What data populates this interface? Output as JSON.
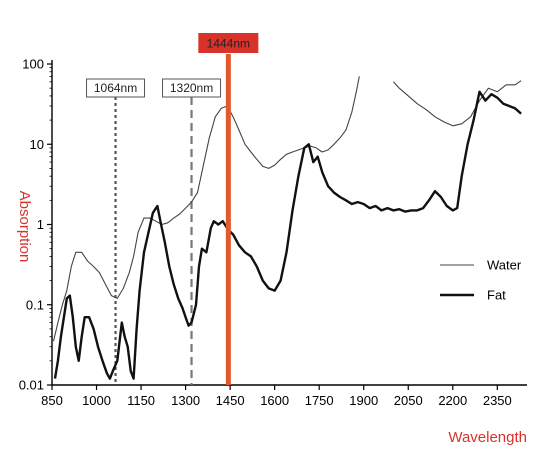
{
  "chart_data": {
    "type": "line",
    "title": "",
    "xlabel": "Wavelength",
    "ylabel": "Absorption",
    "xlim": [
      850,
      2450
    ],
    "ylim": [
      0.01,
      100
    ],
    "yscale": "log",
    "grid": false,
    "legend_placement": "right",
    "x_ticks": [
      "850",
      "1000",
      "1150",
      "1300",
      "1450",
      "1600",
      "1750",
      "1900",
      "2050",
      "2200",
      "2350"
    ],
    "x_tick_values": [
      850,
      1000,
      1150,
      1300,
      1450,
      1600,
      1750,
      1900,
      2050,
      2200,
      2350
    ],
    "y_ticks": [
      "0.01",
      "0.1",
      "1",
      "10",
      "100"
    ],
    "y_tick_values": [
      0.01,
      0.1,
      1,
      10,
      100
    ],
    "colors": {
      "accent": "#d9322b",
      "laser": "#e2592c",
      "water": "#444444",
      "fat": "#111111"
    },
    "markers": [
      {
        "x": 1064,
        "label": "1064nm",
        "style": "dotted"
      },
      {
        "x": 1320,
        "label": "1320nm",
        "style": "dashed"
      },
      {
        "x": 1444,
        "label": "1444nm",
        "style": "highlight"
      }
    ],
    "series": [
      {
        "name": "Water",
        "segments": [
          [
            [
              855,
              0.035
            ],
            [
              870,
              0.06
            ],
            [
              885,
              0.1
            ],
            [
              900,
              0.15
            ],
            [
              915,
              0.3
            ],
            [
              930,
              0.45
            ],
            [
              950,
              0.45
            ],
            [
              970,
              0.35
            ],
            [
              990,
              0.3
            ],
            [
              1010,
              0.25
            ],
            [
              1030,
              0.18
            ],
            [
              1050,
              0.13
            ],
            [
              1070,
              0.12
            ],
            [
              1090,
              0.16
            ],
            [
              1110,
              0.25
            ],
            [
              1125,
              0.4
            ],
            [
              1140,
              0.8
            ],
            [
              1160,
              1.2
            ],
            [
              1180,
              1.2
            ],
            [
              1200,
              1.1
            ],
            [
              1220,
              1.0
            ],
            [
              1240,
              1.05
            ],
            [
              1260,
              1.2
            ],
            [
              1280,
              1.35
            ],
            [
              1300,
              1.6
            ],
            [
              1320,
              1.9
            ],
            [
              1340,
              2.5
            ],
            [
              1360,
              5.5
            ],
            [
              1380,
              12
            ],
            [
              1400,
              22
            ],
            [
              1420,
              28
            ],
            [
              1440,
              30
            ],
            [
              1460,
              22
            ],
            [
              1480,
              15
            ],
            [
              1500,
              10
            ],
            [
              1520,
              8
            ],
            [
              1540,
              6.5
            ],
            [
              1560,
              5.3
            ],
            [
              1580,
              5.0
            ],
            [
              1600,
              5.5
            ],
            [
              1620,
              6.5
            ],
            [
              1640,
              7.5
            ],
            [
              1660,
              8
            ],
            [
              1680,
              8.5
            ],
            [
              1700,
              9
            ],
            [
              1720,
              9.5
            ],
            [
              1740,
              9
            ],
            [
              1760,
              8
            ],
            [
              1780,
              8.5
            ],
            [
              1800,
              10
            ],
            [
              1820,
              12
            ],
            [
              1840,
              15
            ],
            [
              1860,
              25
            ],
            [
              1875,
              45
            ],
            [
              1885,
              70
            ]
          ],
          [
            [
              2000,
              60
            ],
            [
              2020,
              50
            ],
            [
              2050,
              40
            ],
            [
              2080,
              32
            ],
            [
              2110,
              27
            ],
            [
              2140,
              22
            ],
            [
              2170,
              19
            ],
            [
              2200,
              17
            ],
            [
              2230,
              18
            ],
            [
              2260,
              22
            ],
            [
              2290,
              35
            ],
            [
              2320,
              50
            ],
            [
              2350,
              45
            ],
            [
              2380,
              55
            ],
            [
              2410,
              55
            ],
            [
              2430,
              62
            ]
          ]
        ]
      },
      {
        "name": "Fat",
        "segments": [
          [
            [
              860,
              0.012
            ],
            [
              870,
              0.02
            ],
            [
              880,
              0.04
            ],
            [
              890,
              0.07
            ],
            [
              900,
              0.12
            ],
            [
              910,
              0.13
            ],
            [
              920,
              0.07
            ],
            [
              930,
              0.03
            ],
            [
              940,
              0.02
            ],
            [
              950,
              0.04
            ],
            [
              960,
              0.07
            ],
            [
              975,
              0.07
            ],
            [
              990,
              0.05
            ],
            [
              1005,
              0.03
            ],
            [
              1020,
              0.02
            ],
            [
              1035,
              0.014
            ],
            [
              1045,
              0.012
            ],
            [
              1055,
              0.015
            ],
            [
              1070,
              0.02
            ],
            [
              1085,
              0.06
            ],
            [
              1095,
              0.04
            ],
            [
              1105,
              0.03
            ],
            [
              1115,
              0.015
            ],
            [
              1125,
              0.012
            ],
            [
              1135,
              0.05
            ],
            [
              1145,
              0.15
            ],
            [
              1160,
              0.45
            ],
            [
              1175,
              0.8
            ],
            [
              1190,
              1.4
            ],
            [
              1205,
              1.7
            ],
            [
              1215,
              1.1
            ],
            [
              1230,
              0.6
            ],
            [
              1245,
              0.3
            ],
            [
              1260,
              0.18
            ],
            [
              1275,
              0.12
            ],
            [
              1290,
              0.09
            ],
            [
              1300,
              0.07
            ],
            [
              1310,
              0.055
            ],
            [
              1320,
              0.06
            ],
            [
              1335,
              0.1
            ],
            [
              1345,
              0.3
            ],
            [
              1355,
              0.5
            ],
            [
              1370,
              0.45
            ],
            [
              1385,
              0.9
            ],
            [
              1395,
              1.1
            ],
            [
              1410,
              1.0
            ],
            [
              1425,
              1.1
            ],
            [
              1445,
              0.85
            ],
            [
              1460,
              0.75
            ],
            [
              1480,
              0.55
            ],
            [
              1500,
              0.45
            ],
            [
              1520,
              0.4
            ],
            [
              1540,
              0.3
            ],
            [
              1560,
              0.2
            ],
            [
              1580,
              0.16
            ],
            [
              1600,
              0.15
            ],
            [
              1620,
              0.2
            ],
            [
              1640,
              0.45
            ],
            [
              1660,
              1.5
            ],
            [
              1680,
              4
            ],
            [
              1700,
              9
            ],
            [
              1715,
              10
            ],
            [
              1730,
              6
            ],
            [
              1745,
              7
            ],
            [
              1760,
              4.5
            ],
            [
              1780,
              3
            ],
            [
              1800,
              2.5
            ],
            [
              1820,
              2.2
            ],
            [
              1840,
              2.0
            ],
            [
              1860,
              1.8
            ],
            [
              1880,
              1.9
            ],
            [
              1900,
              1.8
            ],
            [
              1920,
              1.6
            ],
            [
              1940,
              1.7
            ],
            [
              1960,
              1.5
            ],
            [
              1980,
              1.6
            ],
            [
              2000,
              1.5
            ],
            [
              2020,
              1.55
            ],
            [
              2040,
              1.45
            ],
            [
              2060,
              1.5
            ],
            [
              2080,
              1.5
            ],
            [
              2100,
              1.6
            ],
            [
              2120,
              2.0
            ],
            [
              2140,
              2.6
            ],
            [
              2160,
              2.2
            ],
            [
              2180,
              1.7
            ],
            [
              2200,
              1.5
            ],
            [
              2215,
              1.6
            ],
            [
              2230,
              4
            ],
            [
              2250,
              10
            ],
            [
              2270,
              20
            ],
            [
              2290,
              45
            ],
            [
              2310,
              35
            ],
            [
              2330,
              42
            ],
            [
              2350,
              38
            ],
            [
              2370,
              32
            ],
            [
              2390,
              30
            ],
            [
              2410,
              28
            ],
            [
              2430,
              24
            ]
          ]
        ]
      }
    ]
  }
}
